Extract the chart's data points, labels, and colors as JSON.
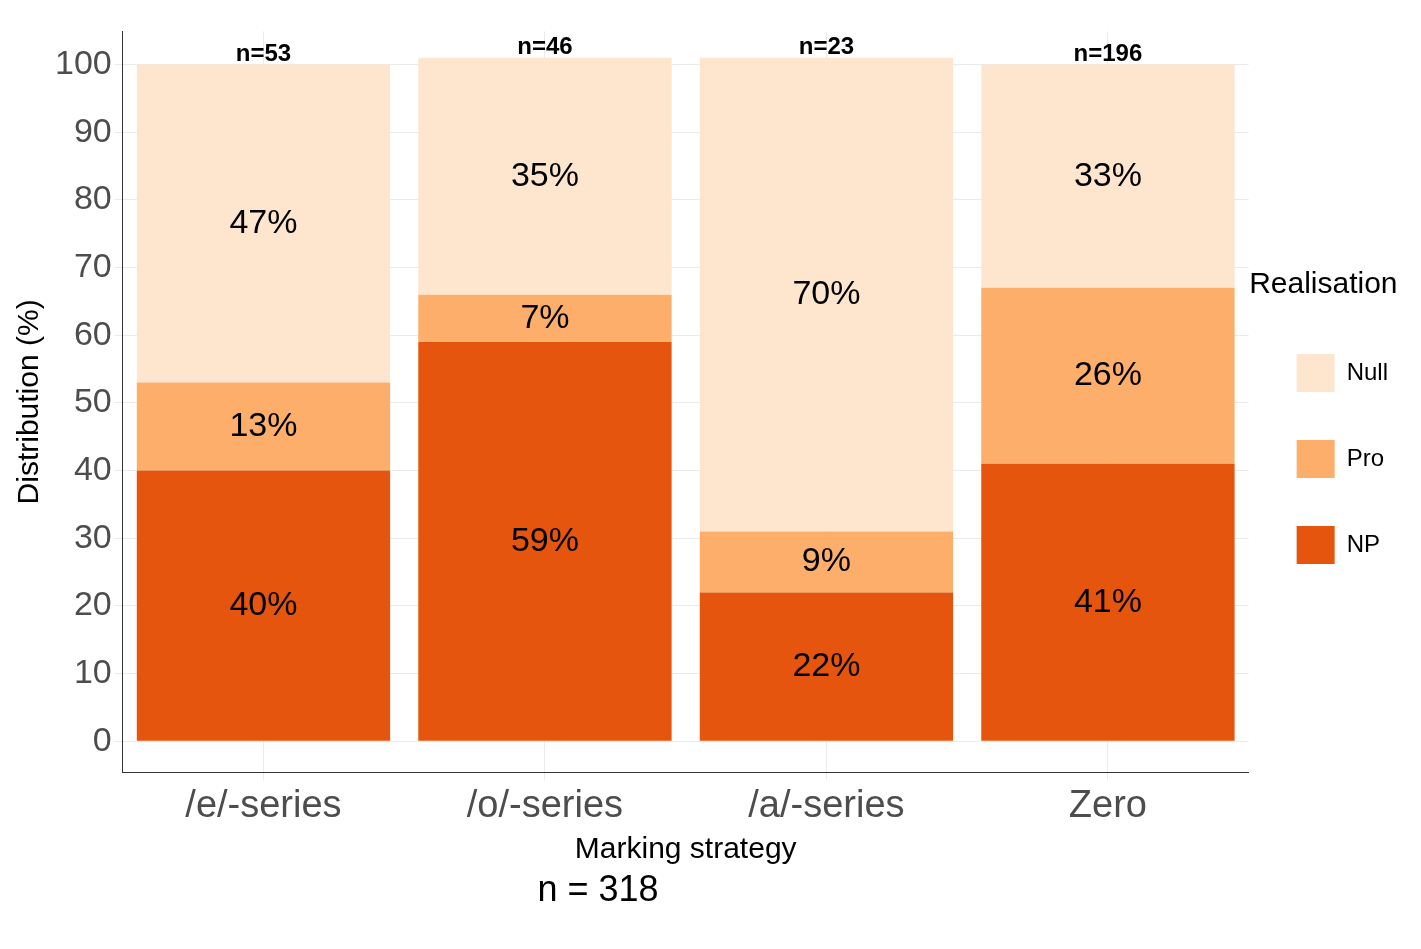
{
  "chart_data": {
    "type": "bar",
    "stacked": true,
    "xlabel": "Marking strategy",
    "ylabel": "Distribution (%)",
    "legend_title": "Realisation",
    "categories": [
      "/e/-series",
      "/o/-series",
      "/a/-series",
      "Zero"
    ],
    "series": [
      {
        "name": "NP",
        "color": "#e6550d",
        "values": [
          40,
          59,
          22,
          41
        ],
        "value_labels": [
          "40%",
          "59%",
          "22%",
          "41%"
        ]
      },
      {
        "name": "Pro",
        "color": "#fdae6b",
        "values": [
          13,
          7,
          9,
          26
        ],
        "value_labels": [
          "13%",
          "7%",
          "9%",
          "26%"
        ]
      },
      {
        "name": "Null",
        "color": "#fee6ce",
        "values": [
          47,
          35,
          70,
          33
        ],
        "value_labels": [
          "47%",
          "35%",
          "70%",
          "33%"
        ]
      }
    ],
    "ylim": [
      -4.6,
      104.9
    ],
    "yticks": [
      0,
      10,
      20,
      30,
      40,
      50,
      60,
      70,
      80,
      90,
      100
    ],
    "grid": true,
    "legend": "right",
    "annotations": [
      {
        "text": "n=53",
        "x": "/e/-series",
        "y": 100
      },
      {
        "text": "n=46",
        "x": "/o/-series",
        "y": 101
      },
      {
        "text": "n=23",
        "x": "/a/-series",
        "y": 101
      },
      {
        "text": "n=196",
        "x": "Zero",
        "y": 100
      },
      "n = 318"
    ]
  }
}
